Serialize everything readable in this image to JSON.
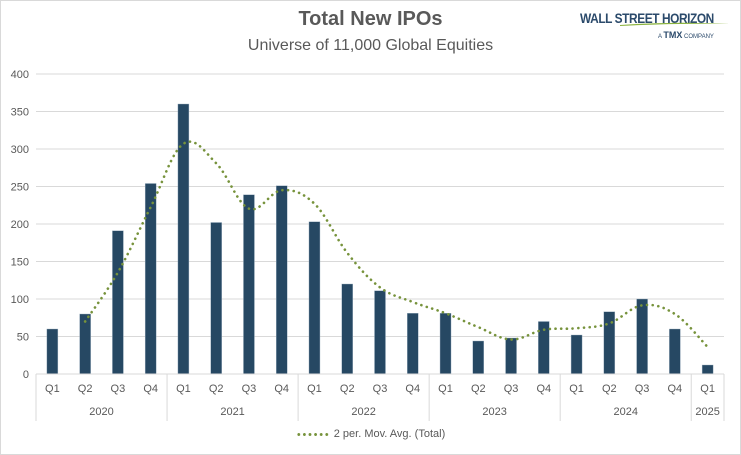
{
  "header": {
    "title": "Total New IPOs",
    "subtitle": "Universe of 11,000 Global Equities"
  },
  "logo": {
    "name": "WALL STREET HORIZON",
    "tagline_prefix": "A",
    "tagline_brand": "TMX",
    "tagline_suffix": "COMPANY"
  },
  "colors": {
    "bar": "#264863",
    "moving_average": "#77933c",
    "gridline": "#d9d9d9",
    "text": "#595959"
  },
  "chart_data": {
    "type": "bar",
    "title": "Total New IPOs",
    "subtitle": "Universe of 11,000 Global Equities",
    "xlabel": "",
    "ylabel": "",
    "ylim": [
      0,
      400
    ],
    "yticks": [
      0,
      50,
      100,
      150,
      200,
      250,
      300,
      350,
      400
    ],
    "grid": true,
    "legend_position": "bottom",
    "categories": [
      "Q1",
      "Q2",
      "Q3",
      "Q4",
      "Q1",
      "Q2",
      "Q3",
      "Q4",
      "Q1",
      "Q2",
      "Q3",
      "Q4",
      "Q1",
      "Q2",
      "Q3",
      "Q4",
      "Q1",
      "Q2",
      "Q3",
      "Q4",
      "Q1"
    ],
    "category_groups": [
      {
        "label": "2020",
        "quarters": [
          "Q1",
          "Q2",
          "Q3",
          "Q4"
        ]
      },
      {
        "label": "2021",
        "quarters": [
          "Q1",
          "Q2",
          "Q3",
          "Q4"
        ]
      },
      {
        "label": "2022",
        "quarters": [
          "Q1",
          "Q2",
          "Q3",
          "Q4"
        ]
      },
      {
        "label": "2023",
        "quarters": [
          "Q1",
          "Q2",
          "Q3",
          "Q4"
        ]
      },
      {
        "label": "2024",
        "quarters": [
          "Q1",
          "Q2",
          "Q3",
          "Q4"
        ]
      },
      {
        "label": "2025",
        "quarters": [
          "Q1"
        ]
      }
    ],
    "series": [
      {
        "name": "Total",
        "type": "bar",
        "values": [
          60,
          80,
          191,
          254,
          360,
          202,
          239,
          251,
          203,
          120,
          111,
          81,
          81,
          44,
          48,
          70,
          52,
          83,
          100,
          60,
          12
        ]
      },
      {
        "name": "2 per. Mov. Avg. (Total)",
        "type": "line",
        "style": "dotted",
        "values": [
          null,
          70,
          135.5,
          222.5,
          307,
          281,
          220.5,
          245,
          227,
          161.5,
          115.5,
          96,
          81,
          62.5,
          46,
          59,
          61,
          67.5,
          91.5,
          80,
          36
        ]
      }
    ],
    "legend": [
      "2 per. Mov. Avg. (Total)"
    ]
  }
}
